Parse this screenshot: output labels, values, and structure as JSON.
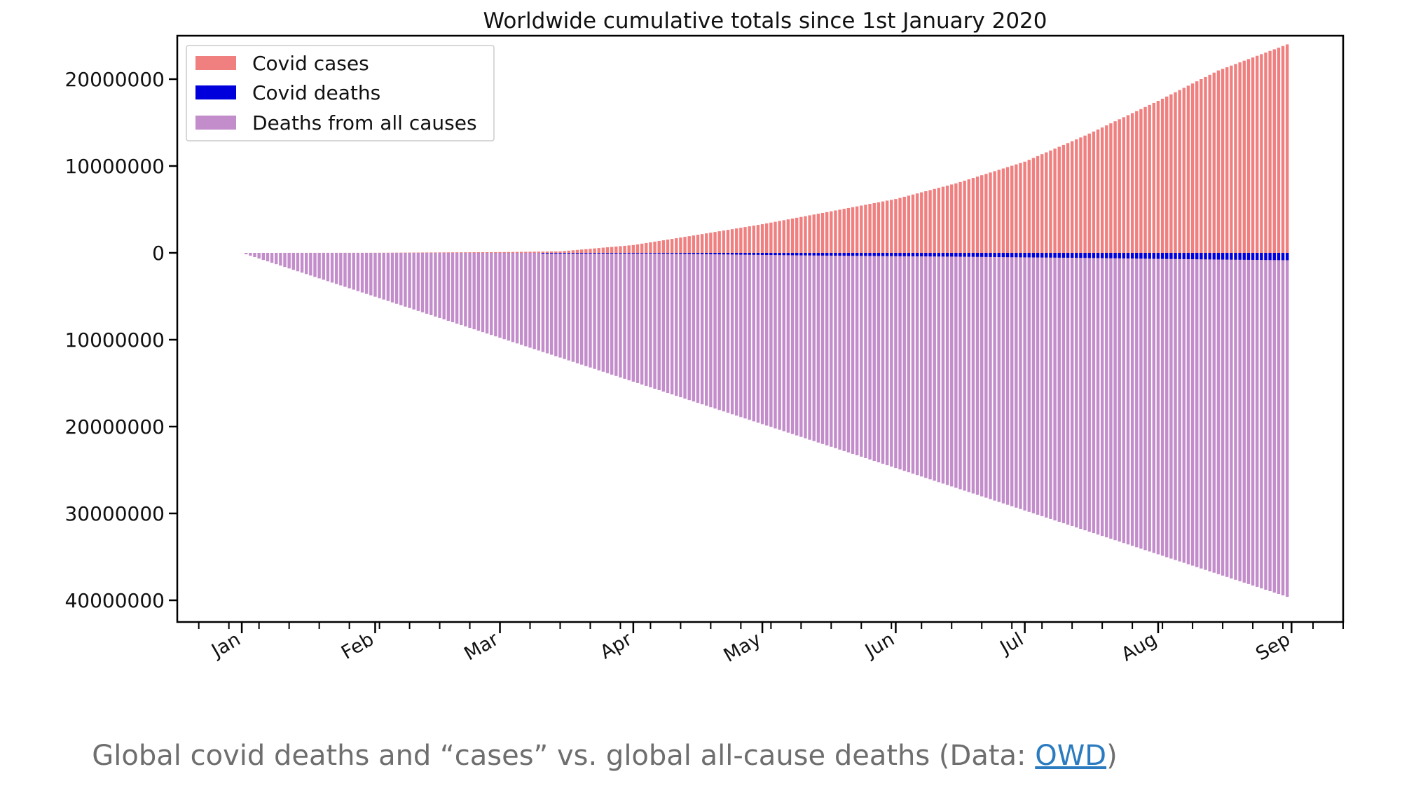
{
  "chart_data": {
    "type": "bar",
    "title": "Worldwide cumulative totals since 1st January 2020",
    "xlabel": "",
    "ylabel": "",
    "x_range": [
      "2020-01-01",
      "2020-08-31"
    ],
    "ylim": [
      -42500000,
      25000000
    ],
    "y_tick_values": [
      20000000,
      10000000,
      0,
      -10000000,
      -20000000,
      -30000000,
      -40000000
    ],
    "y_tick_labels": [
      "20000000",
      "10000000",
      "0",
      "10000000",
      "20000000",
      "30000000",
      "40000000"
    ],
    "x_tick_labels": [
      "Jan",
      "Feb",
      "Mar",
      "Apr",
      "May",
      "Jun",
      "Jul",
      "Aug",
      "Sep"
    ],
    "x_tick_dates": [
      "2020-01-01",
      "2020-02-01",
      "2020-03-01",
      "2020-04-01",
      "2020-05-01",
      "2020-06-01",
      "2020-07-01",
      "2020-08-01",
      "2020-09-01"
    ],
    "legend_position": "top-left",
    "grid": false,
    "series": [
      {
        "name": "Covid cases",
        "color": "#f08080",
        "x": [
          "2020-01-01",
          "2020-02-01",
          "2020-03-01",
          "2020-03-15",
          "2020-04-01",
          "2020-04-15",
          "2020-05-01",
          "2020-05-15",
          "2020-06-01",
          "2020-06-15",
          "2020-07-01",
          "2020-07-15",
          "2020-08-01",
          "2020-08-15",
          "2020-08-31"
        ],
        "values": [
          0,
          12000,
          88000,
          170000,
          900000,
          2000000,
          3300000,
          4600000,
          6200000,
          8000000,
          10500000,
          13500000,
          17500000,
          21000000,
          24000000
        ]
      },
      {
        "name": "Covid deaths",
        "color": "#0000dd",
        "x": [
          "2020-01-01",
          "2020-02-01",
          "2020-03-01",
          "2020-03-15",
          "2020-04-01",
          "2020-04-15",
          "2020-05-01",
          "2020-05-15",
          "2020-06-01",
          "2020-06-15",
          "2020-07-01",
          "2020-07-15",
          "2020-08-01",
          "2020-08-15",
          "2020-08-31"
        ],
        "values": [
          0,
          -300,
          -3000,
          -6000,
          -50000,
          -130000,
          -235000,
          -310000,
          -375000,
          -435000,
          -515000,
          -580000,
          -690000,
          -765000,
          -840000
        ]
      },
      {
        "name": "Deaths from all causes",
        "color": "#c28dca",
        "x": [
          "2020-01-01",
          "2020-08-31"
        ],
        "values": [
          0,
          -39600000
        ]
      }
    ]
  },
  "caption": {
    "text": "Global covid deaths and “cases” vs. global all-cause deaths (Data: ",
    "link": "OWD",
    "suffix": ")"
  }
}
